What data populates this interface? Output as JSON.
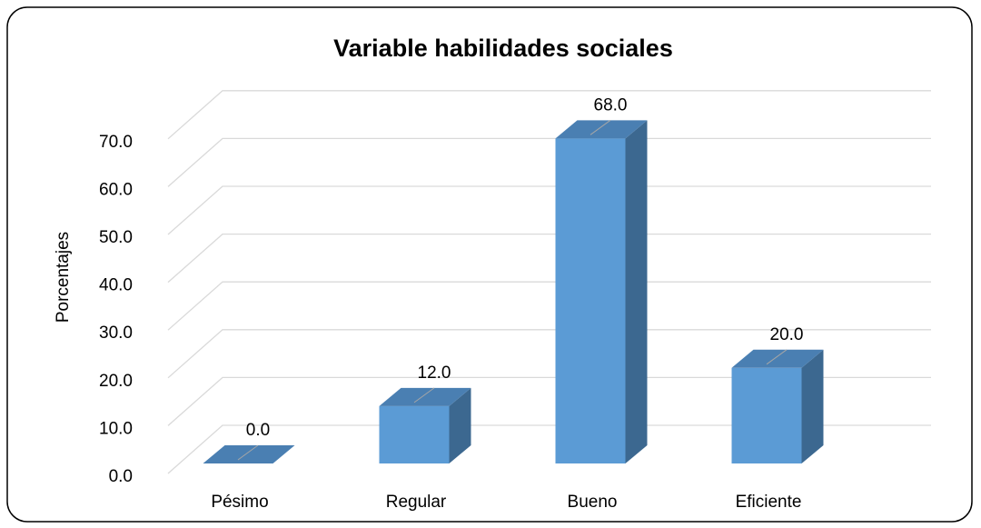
{
  "chart_data": {
    "type": "bar3d",
    "title": "Variable habilidades sociales",
    "y_label": "Porcentajes",
    "categories": [
      "Pésimo",
      "Regular",
      "Bueno",
      "Eficiente"
    ],
    "values": [
      0,
      12,
      68,
      20
    ],
    "value_labels": [
      "0.0",
      "12.0",
      "68.0",
      "20.0"
    ],
    "color": "#5b9bd5",
    "ylim": [
      0,
      70
    ],
    "yticks": [
      {
        "value": 0,
        "label": "0.0"
      },
      {
        "value": 10,
        "label": "10.0"
      },
      {
        "value": 20,
        "label": "20.0"
      },
      {
        "value": 30,
        "label": "30.0"
      },
      {
        "value": 40,
        "label": "40.0"
      },
      {
        "value": 50,
        "label": "50.0"
      },
      {
        "value": 60,
        "label": "60.0"
      },
      {
        "value": 70,
        "label": "70.0"
      }
    ],
    "grid": true
  }
}
